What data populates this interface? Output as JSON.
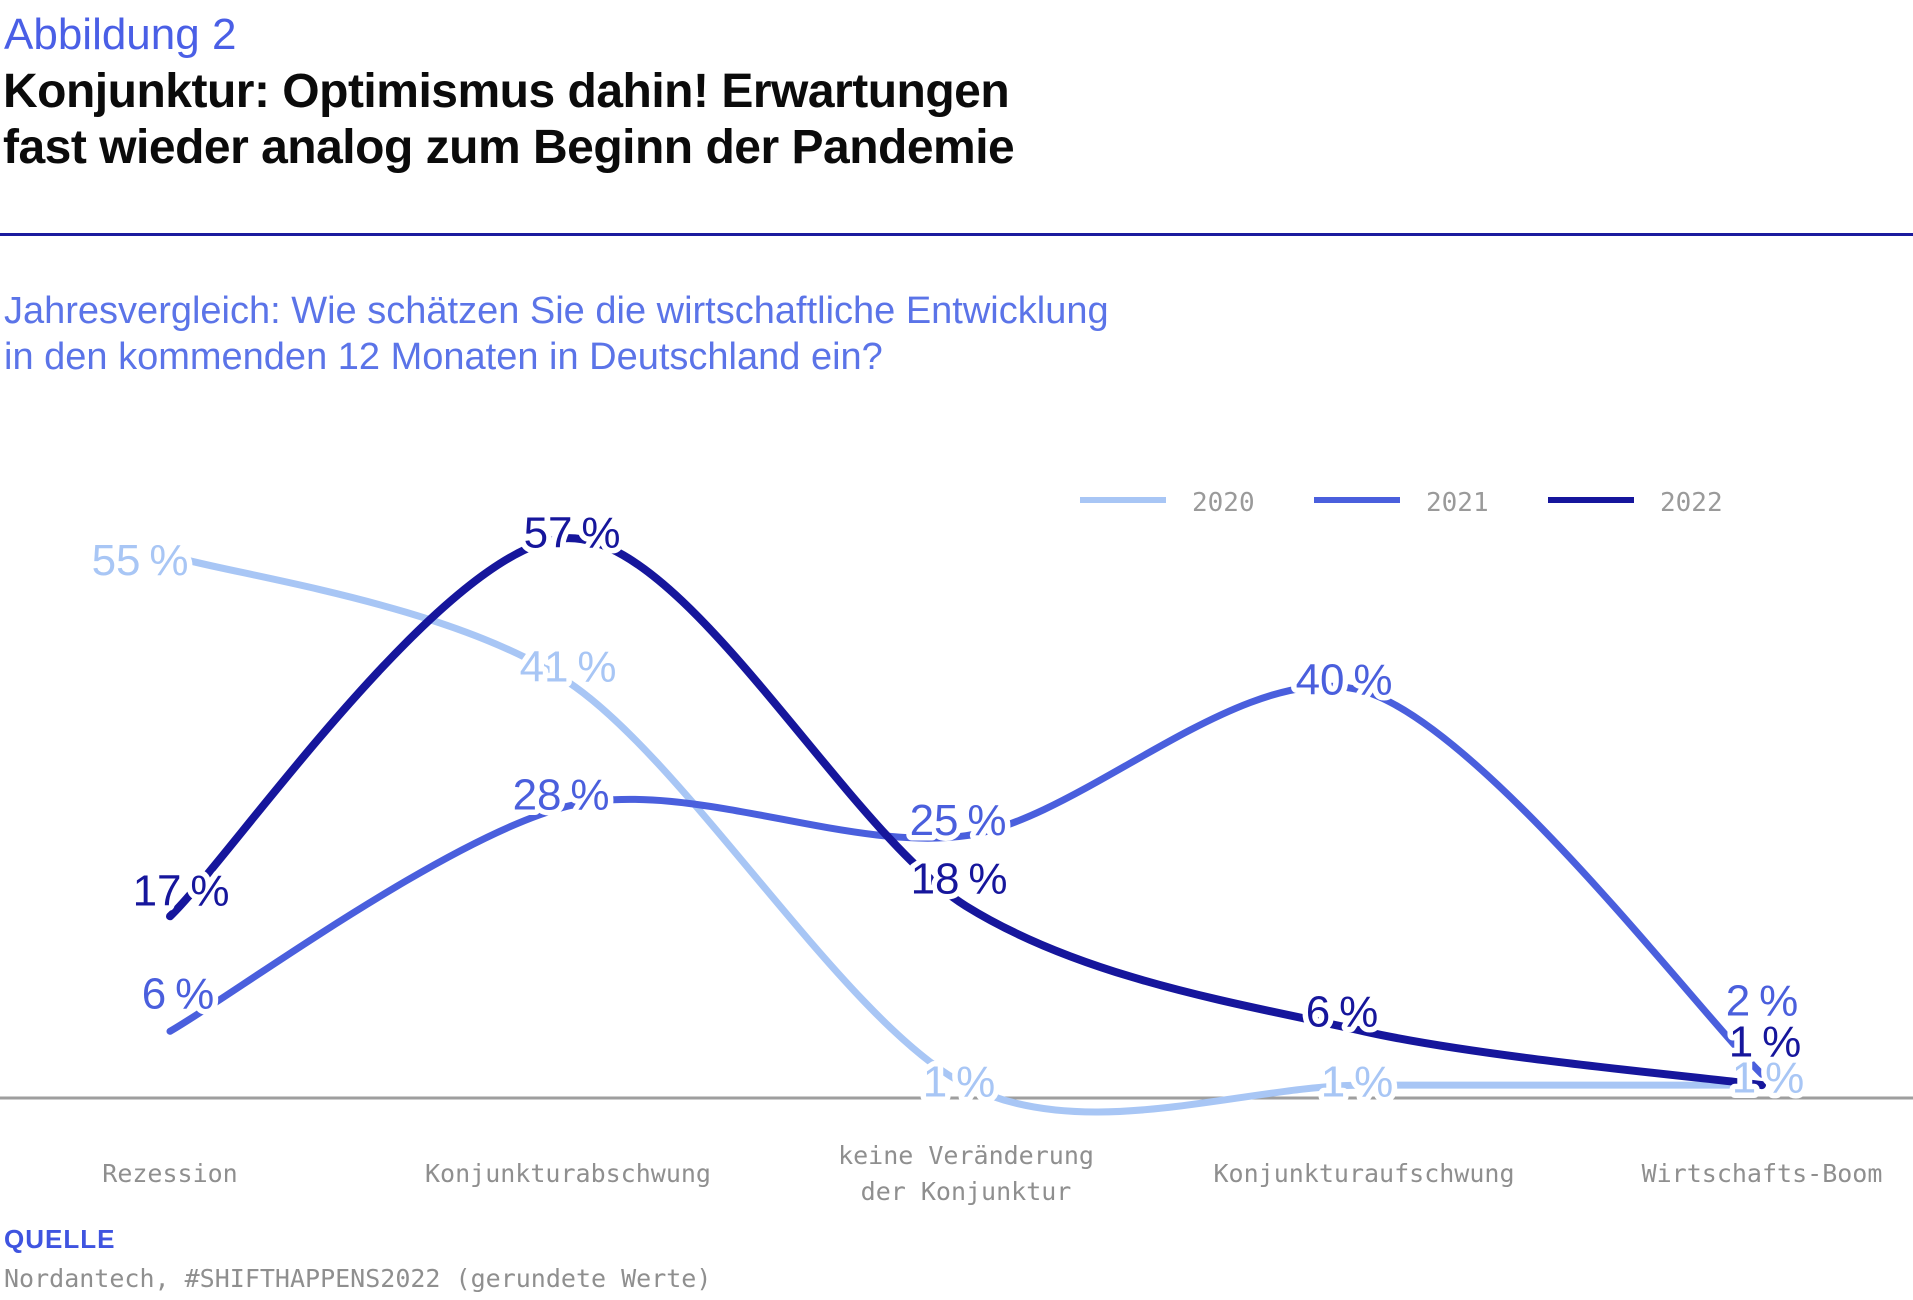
{
  "figure_label": "Abbildung 2",
  "title": {
    "line1": "Konjunktur: Optimismus dahin! Erwartungen",
    "line2": "fast wieder analog zum Beginn der Pandemie"
  },
  "subtitle": {
    "line1": "Jahresvergleich: Wie schätzen Sie die wirtschaftliche Entwicklung",
    "line2": "in den kommenden 12 Monaten in Deutschland ein?"
  },
  "source": {
    "label": "QUELLE",
    "text": "Nordantech, #SHIFTHAPPENS2022 (gerundete Werte)"
  },
  "colors": {
    "figure_label_blue": "#4a5fe6",
    "subtitle_blue": "#5b74e8",
    "divider_navy": "#1b1b9e",
    "axis_gray": "#9e9e9e",
    "label_gray": "#8f8f8f",
    "legend_text_gray": "#9a9a9a",
    "source_label_blue": "#3f54e0",
    "series_2020": "#a8c6f5",
    "series_2021": "#4a5fdd",
    "series_2022": "#16169c"
  },
  "chart_data": {
    "type": "line",
    "unit": "%",
    "categories": [
      "Rezession",
      "Konjunkturabschwung",
      "keine Veränderung\nder Konjunktur",
      "Konjunkturaufschwung",
      "Wirtschafts-Boom"
    ],
    "series": [
      {
        "name": "2020",
        "color": "#a8c6f5",
        "values": [
          55,
          41,
          1,
          1,
          1
        ]
      },
      {
        "name": "2021",
        "color": "#4a5fdd",
        "values": [
          6,
          28,
          25,
          40,
          2
        ]
      },
      {
        "name": "2022",
        "color": "#16169c",
        "values": [
          17,
          57,
          18,
          6,
          1
        ]
      }
    ],
    "ylim": [
      0,
      60
    ],
    "grid": false,
    "legend_position": "top-right",
    "value_labels_shown": true
  }
}
